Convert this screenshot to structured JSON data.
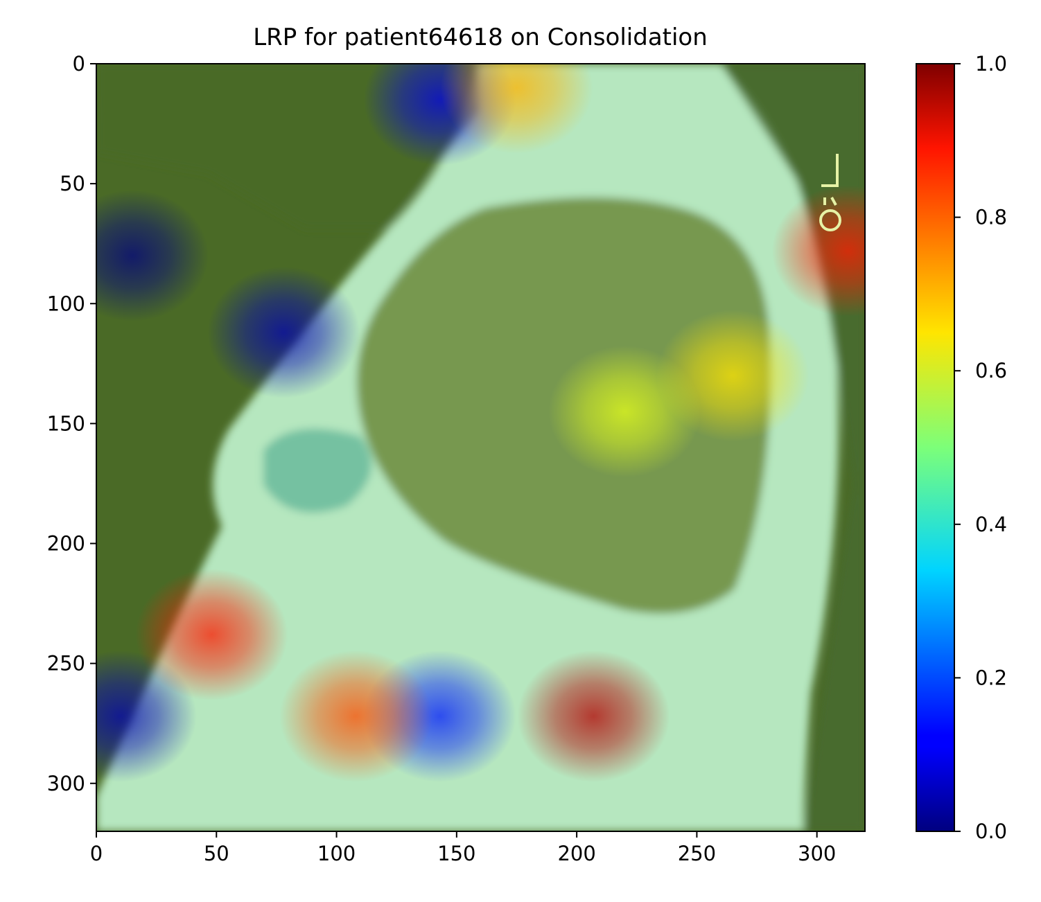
{
  "chart_data": {
    "type": "heatmap",
    "title": "LRP for patient64618 on Consolidation",
    "xlabel": "",
    "ylabel": "",
    "xlim": [
      0,
      320
    ],
    "ylim": [
      320,
      0
    ],
    "x_ticks": [
      0,
      50,
      100,
      150,
      200,
      250,
      300
    ],
    "y_ticks": [
      0,
      50,
      100,
      150,
      200,
      250,
      300
    ],
    "colorbar": {
      "colormap": "jet",
      "range": [
        0.0,
        1.0
      ],
      "ticks": [
        "0.0",
        "0.2",
        "0.4",
        "0.6",
        "0.8",
        "1.0"
      ]
    },
    "overlay": "lateral chest x-ray",
    "hotspots": [
      {
        "x": 15,
        "y": 80,
        "value": 0.0
      },
      {
        "x": 78,
        "y": 112,
        "value": 0.05
      },
      {
        "x": 143,
        "y": 15,
        "value": 0.1
      },
      {
        "x": 10,
        "y": 272,
        "value": 0.05
      },
      {
        "x": 143,
        "y": 272,
        "value": 0.15
      },
      {
        "x": 48,
        "y": 238,
        "value": 0.85
      },
      {
        "x": 207,
        "y": 272,
        "value": 0.95
      },
      {
        "x": 108,
        "y": 272,
        "value": 0.8
      },
      {
        "x": 313,
        "y": 78,
        "value": 0.85
      },
      {
        "x": 175,
        "y": 10,
        "value": 0.7
      },
      {
        "x": 265,
        "y": 130,
        "value": 0.65
      },
      {
        "x": 220,
        "y": 145,
        "value": 0.6
      }
    ]
  }
}
